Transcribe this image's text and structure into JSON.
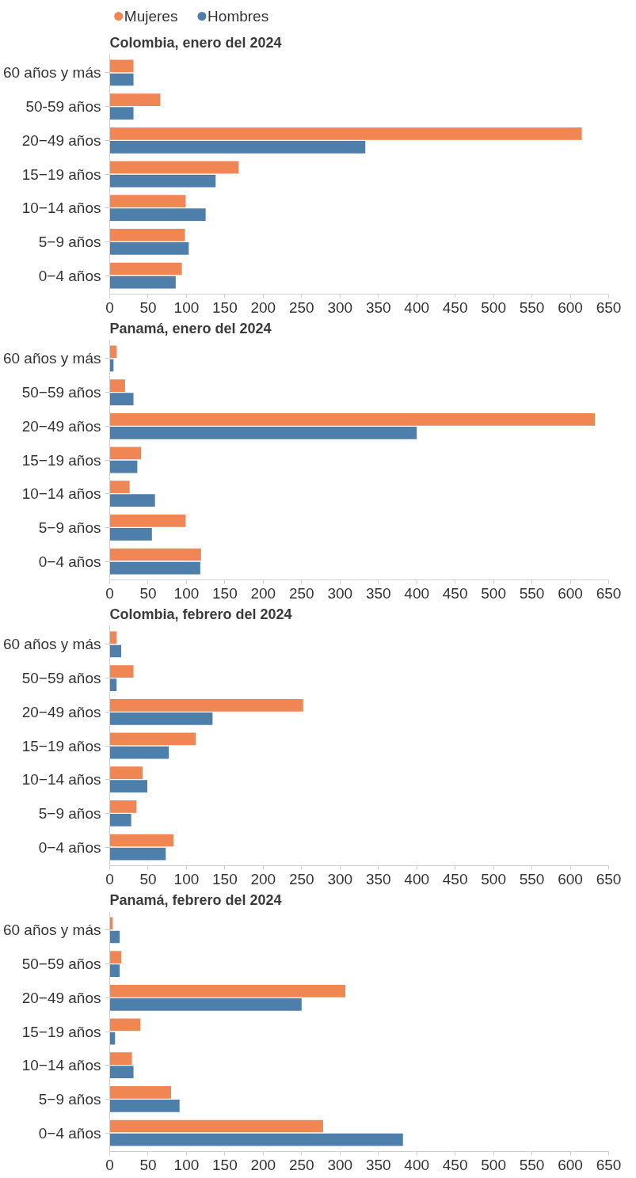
{
  "chart_data": [
    {
      "type": "bar",
      "orientation": "horizontal",
      "title": "Colombia, enero del 2024",
      "legend": "top left",
      "categories": [
        "60 años y más",
        "50-59 años",
        "20−49 años",
        "15−19 años",
        "10−14 años",
        "5−9 años",
        "0−4 años"
      ],
      "xlim": [
        0,
        650
      ],
      "xticks": [
        0,
        50,
        100,
        150,
        200,
        250,
        300,
        350,
        400,
        450,
        500,
        550,
        600,
        650
      ],
      "grid": false,
      "series": [
        {
          "name": "Mujeres",
          "color": "#ef8653",
          "values": [
            31,
            66,
            615,
            168,
            99,
            98,
            94
          ]
        },
        {
          "name": "Hombres",
          "color": "#4e7fab",
          "values": [
            31,
            31,
            333,
            138,
            125,
            103,
            86
          ]
        }
      ]
    },
    {
      "type": "bar",
      "orientation": "horizontal",
      "title": "Panamá, enero del 2024",
      "categories": [
        "60 años y más",
        "50−59 años",
        "20−49 años",
        "15−19 años",
        "10−14 años",
        "5−9 años",
        "0−4 años"
      ],
      "xlim": [
        0,
        650
      ],
      "xticks": [
        0,
        50,
        100,
        150,
        200,
        250,
        300,
        350,
        400,
        450,
        500,
        550,
        600,
        650
      ],
      "grid": false,
      "series": [
        {
          "color": "#ef8653",
          "values": [
            9,
            20,
            632,
            41,
            26,
            99,
            119
          ]
        },
        {
          "color": "#4e7fab",
          "values": [
            5,
            31,
            400,
            36,
            59,
            55,
            118
          ]
        }
      ]
    },
    {
      "type": "bar",
      "orientation": "horizontal",
      "title": "Colombia, febrero del 2024",
      "categories": [
        "60 años y más",
        "50−59 años",
        "20−49 años",
        "15−19 años",
        "10−14 años",
        "5−9 años",
        "0−4 años"
      ],
      "xlim": [
        0,
        650
      ],
      "xticks": [
        0,
        50,
        100,
        150,
        200,
        250,
        300,
        350,
        400,
        450,
        500,
        550,
        600,
        650
      ],
      "grid": false,
      "series": [
        {
          "color": "#ef8653",
          "values": [
            9,
            31,
            252,
            112,
            43,
            35,
            83
          ]
        },
        {
          "color": "#4e7fab",
          "values": [
            15,
            9,
            134,
            77,
            49,
            28,
            73
          ]
        }
      ]
    },
    {
      "type": "bar",
      "orientation": "horizontal",
      "title": "Panamá, febrero del 2024",
      "categories": [
        "60 años y más",
        "50−59 años",
        "20−49 años",
        "15−19 años",
        "10−14 años",
        "5−9 años",
        "0−4 años"
      ],
      "xlim": [
        0,
        650
      ],
      "xticks": [
        0,
        50,
        100,
        150,
        200,
        250,
        300,
        350,
        400,
        450,
        500,
        550,
        600,
        650
      ],
      "grid": false,
      "series": [
        {
          "color": "#ef8653",
          "values": [
            4,
            15,
            307,
            40,
            29,
            80,
            278
          ]
        },
        {
          "color": "#4e7fab",
          "values": [
            13,
            13,
            250,
            7,
            31,
            91,
            382
          ]
        }
      ]
    }
  ]
}
